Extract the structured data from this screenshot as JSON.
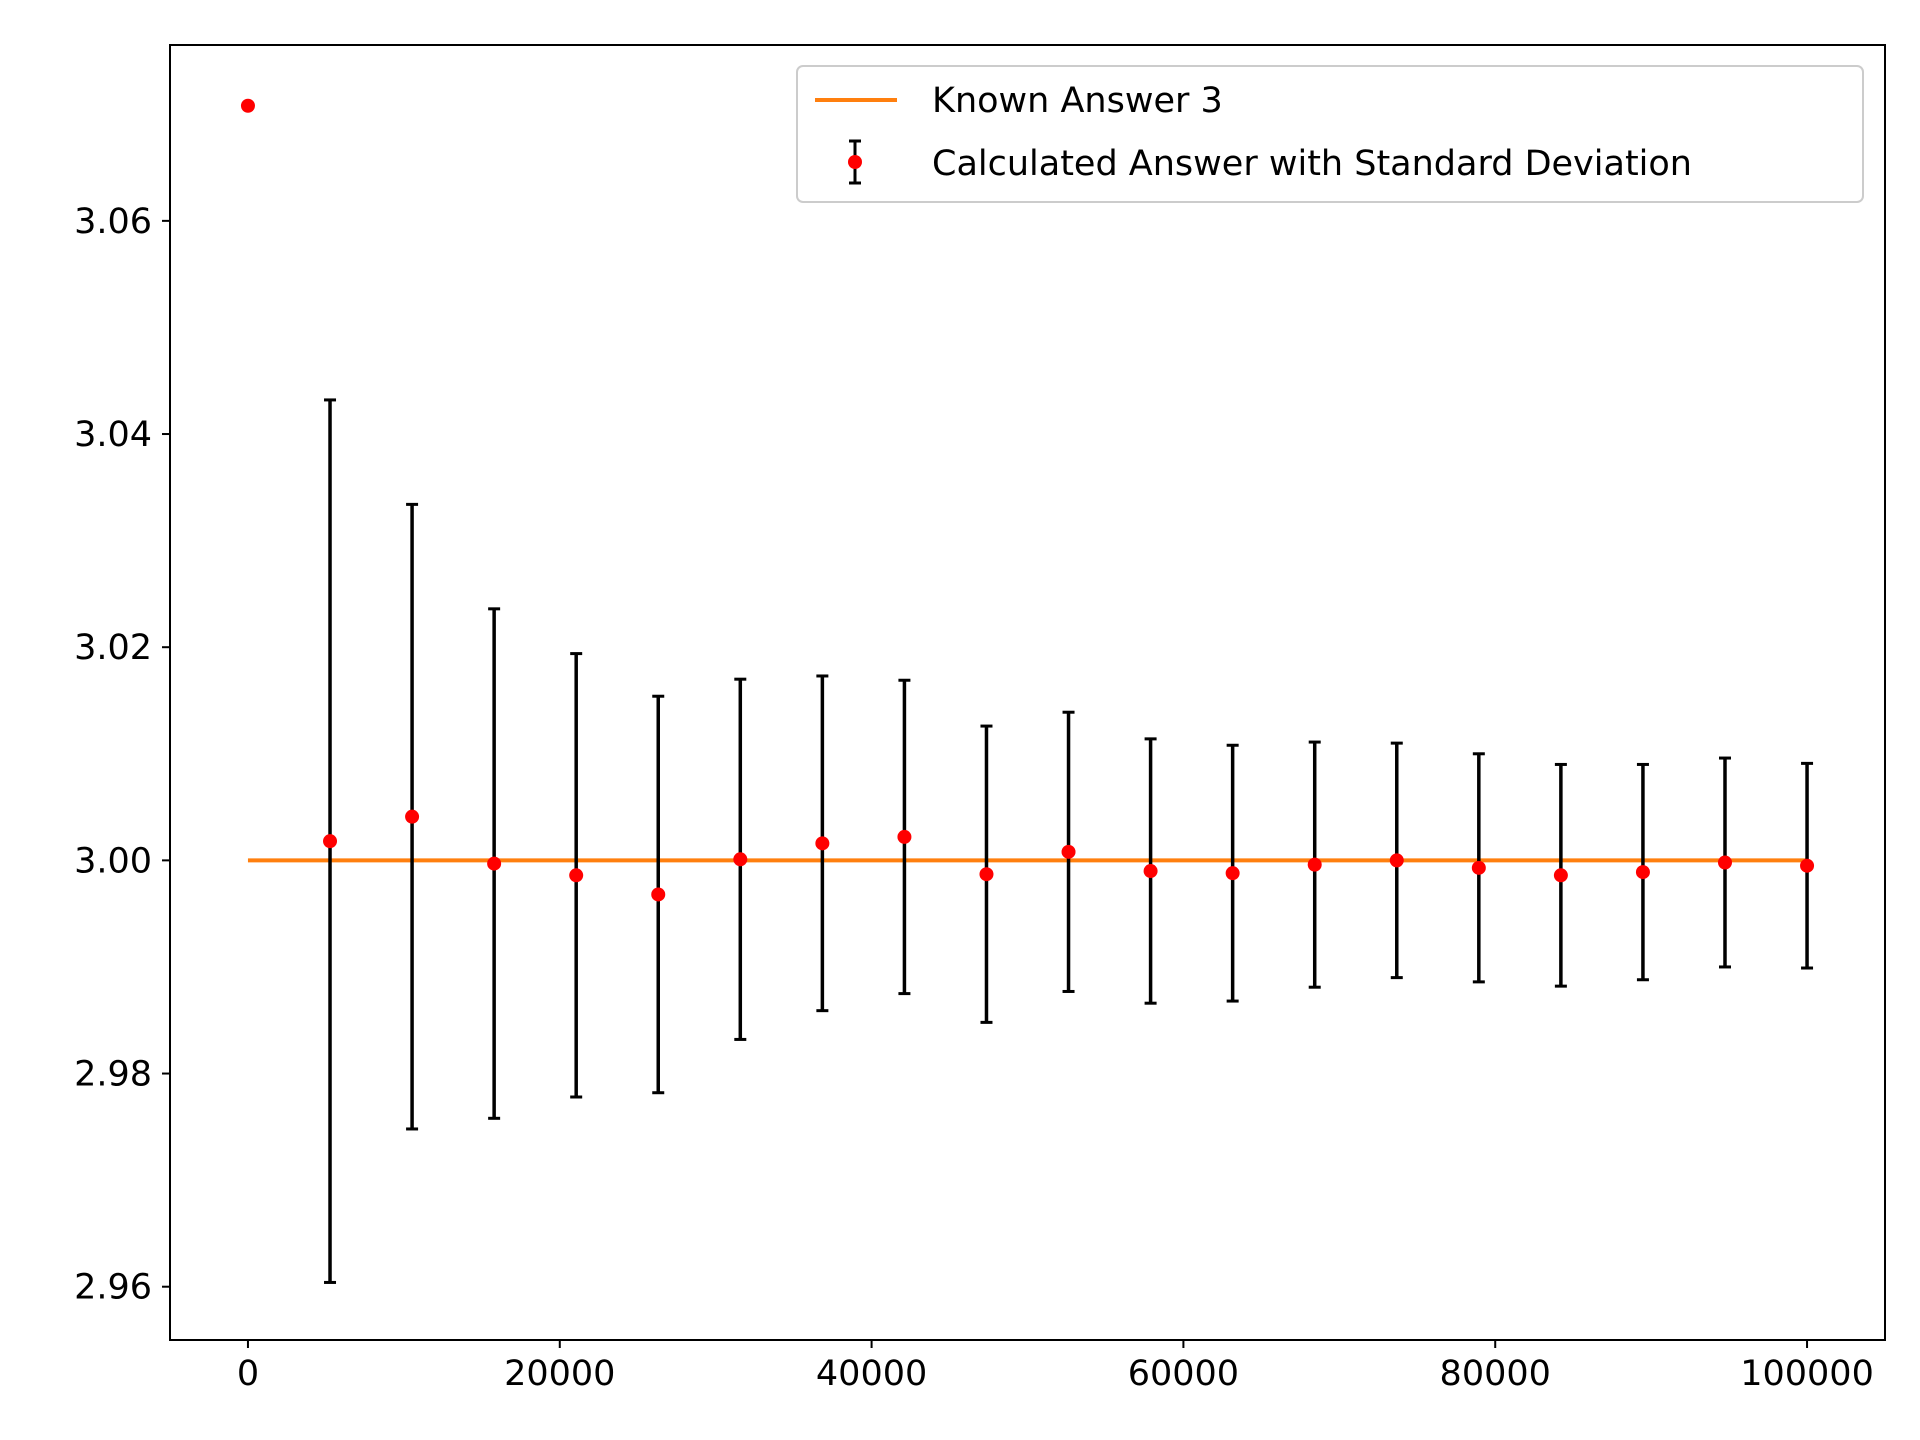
{
  "chart_data": {
    "type": "scatter",
    "title": "",
    "xlabel": "",
    "ylabel": "",
    "xlim": [
      -5000,
      105000
    ],
    "ylim": [
      2.955,
      3.0765
    ],
    "x_ticks": [
      0,
      20000,
      40000,
      60000,
      80000,
      100000
    ],
    "x_tick_labels": [
      "0",
      "20000",
      "40000",
      "60000",
      "80000",
      "100000"
    ],
    "y_ticks": [
      2.96,
      2.98,
      3.0,
      3.02,
      3.04,
      3.06
    ],
    "y_tick_labels": [
      "2.96",
      "2.98",
      "3.00",
      "3.02",
      "3.04",
      "3.06"
    ],
    "grid": false,
    "legend_position": "top-right",
    "series": [
      {
        "name": "Known Answer 3",
        "type": "line",
        "color": "#ff7f0e",
        "x": [
          0,
          100000
        ],
        "y": [
          3.0,
          3.0
        ]
      },
      {
        "name": "Calculated Answer with Standard Deviation",
        "type": "errorbar",
        "marker_color": "#ff0000",
        "errorbar_color": "#000000",
        "x": [
          1,
          5264,
          10527,
          15790,
          21053,
          26316,
          31579,
          36843,
          42106,
          47369,
          52632,
          57895,
          63158,
          68422,
          73685,
          78948,
          84211,
          89474,
          94737,
          100000
        ],
        "y": [
          3.0708,
          3.0018,
          3.0041,
          2.9997,
          2.9986,
          2.9968,
          3.0001,
          3.0016,
          3.0022,
          2.9987,
          3.0008,
          2.999,
          2.9988,
          2.9996,
          3.0,
          2.9993,
          2.9986,
          2.9989,
          2.9998,
          2.9995
        ],
        "yerr": [
          null,
          0.0414,
          0.0293,
          0.0239,
          0.0208,
          0.0186,
          0.0169,
          0.0157,
          0.0147,
          0.0139,
          0.0131,
          0.0124,
          0.012,
          0.0115,
          0.011,
          0.0107,
          0.0104,
          0.0101,
          0.0098,
          0.0096
        ]
      }
    ]
  }
}
